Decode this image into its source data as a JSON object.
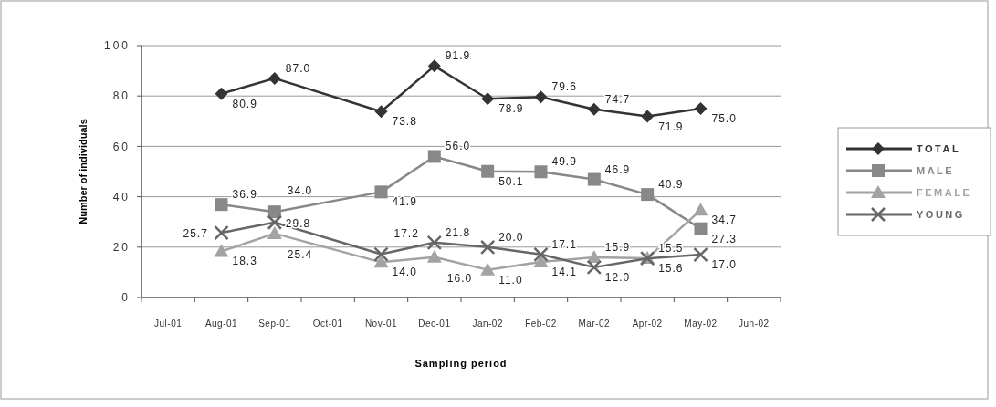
{
  "chart_data": {
    "type": "line",
    "xlabel": "Sampling period",
    "ylabel": "Number of individuals",
    "categories": [
      "Jul-01",
      "Aug-01",
      "Sep-01",
      "Oct-01",
      "Nov-01",
      "Dec-01",
      "Jan-02",
      "Feb-02",
      "Mar-02",
      "Apr-02",
      "May-02",
      "Jun-02"
    ],
    "ylim": [
      0,
      100
    ],
    "yticks": [
      0,
      20,
      40,
      60,
      80,
      100
    ],
    "grid": "y",
    "legend": "right",
    "series": [
      {
        "name": "TOTAL",
        "color": "#333333",
        "marker": "diamond",
        "values": [
          null,
          80.9,
          87,
          null,
          73.8,
          91.9,
          78.9,
          79.6,
          74.7,
          71.9,
          75,
          null
        ],
        "value_labels": [
          null,
          "80.9",
          "87.0",
          null,
          "73.8",
          "91.9",
          "78.9",
          "79.6",
          "74.7",
          "71.9",
          "75.0",
          null
        ]
      },
      {
        "name": "MALE",
        "color": "#888888",
        "marker": "square",
        "values": [
          null,
          36.9,
          34,
          null,
          41.9,
          56,
          50.1,
          49.9,
          46.9,
          40.9,
          27.3,
          null
        ],
        "value_labels": [
          null,
          "36.9",
          "34.0",
          null,
          "41.9",
          "56.0",
          "50.1",
          "49.9",
          "46.9",
          "40.9",
          "27.3",
          null
        ]
      },
      {
        "name": "FEMALE",
        "color": "#a3a3a3",
        "marker": "triangle",
        "values": [
          null,
          18.3,
          25.4,
          null,
          14,
          16,
          11,
          14.1,
          15.9,
          15.6,
          34.7,
          null
        ],
        "value_labels": [
          null,
          "18.3",
          "25.4",
          null,
          "14.0",
          "16.0",
          "11.0",
          "14.1",
          "15.9",
          "15.6",
          "34.7",
          null
        ]
      },
      {
        "name": "YOUNG",
        "color": "#666666",
        "marker": "cross",
        "values": [
          null,
          25.7,
          29.8,
          null,
          17.2,
          21.8,
          20,
          17.1,
          12,
          15.5,
          17,
          null
        ],
        "value_labels": [
          null,
          "25.7",
          "29.8",
          null,
          "17.2",
          "21.8",
          "20.0",
          "17.1",
          "12.0",
          "15.5",
          "17.0",
          null
        ]
      }
    ]
  }
}
